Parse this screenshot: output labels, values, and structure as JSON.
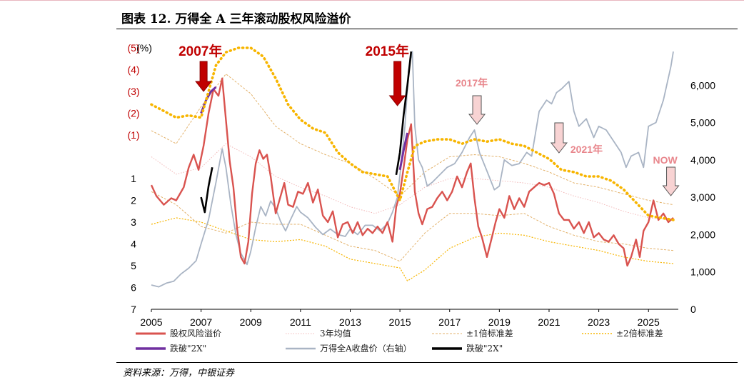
{
  "header": {
    "title": "图表 12. 万得全 A 三年滚动股权风险溢价"
  },
  "footer": {
    "source": "资料来源：万得，中银证券"
  },
  "colors": {
    "erp": "#d9534f",
    "erp_2x": "#7030a0",
    "index": "#a9b4c4",
    "index_2x": "#000000",
    "mean": "#f2b8b8",
    "std1": "#e3b26b",
    "std2": "#f7b500",
    "arrow_dark": "#c00000",
    "arrow_light": "#f8d3d3",
    "annotation_light": "#e8868c"
  },
  "chart_data": {
    "type": "line",
    "x_ticks": [
      "2005",
      "2007",
      "2009",
      "2011",
      "2013",
      "2015",
      "2017",
      "2019",
      "2021",
      "2023",
      "2025"
    ],
    "x_range": [
      2005.0,
      2026.2
    ],
    "y_left_ticks": [
      "(5)",
      "(4)",
      "(3)",
      "(2)",
      "(1)",
      "1",
      "2",
      "3",
      "4",
      "5",
      "6",
      "7"
    ],
    "y_left_unit": "(%)",
    "y_left_range": [
      -5,
      7
    ],
    "y_left_inverted": true,
    "y_right_ticks": [
      "0",
      "1,000",
      "2,000",
      "3,000",
      "4,000",
      "5,000",
      "6,000"
    ],
    "y_right_range": [
      0,
      7000
    ],
    "legend_position": "bottom",
    "legend": [
      {
        "key": "erp",
        "label": "股权风险溢价",
        "style": "solid"
      },
      {
        "key": "mean",
        "label": "3年均值",
        "style": "dotted"
      },
      {
        "key": "std1",
        "label": "±1倍标准差",
        "style": "dashed"
      },
      {
        "key": "std2",
        "label": "±2倍标准差",
        "style": "dotted"
      },
      {
        "key": "erp_2x",
        "label": "跌破\"2X\"",
        "style": "solid"
      },
      {
        "key": "index",
        "label": "万得全A收盘价（右轴）",
        "style": "solid"
      },
      {
        "key": "index_2x",
        "label": "跌破\"2X\"",
        "style": "solid"
      }
    ],
    "annotations": [
      {
        "text": "2007年",
        "x": 2007.1,
        "style": "big"
      },
      {
        "text": "2015年",
        "x": 2014.9,
        "style": "big"
      },
      {
        "text": "2017年",
        "x": 2018.1,
        "style": "small"
      },
      {
        "text": "2021年",
        "x": 2021.4,
        "style": "small"
      },
      {
        "text": "NOW",
        "x": 2025.9,
        "style": "small"
      }
    ],
    "series": [
      {
        "key": "erp",
        "name": "股权风险溢价",
        "axis": "left",
        "x": [
          2005.0,
          2005.2,
          2005.5,
          2005.8,
          2006.0,
          2006.3,
          2006.5,
          2006.7,
          2006.9,
          2007.1,
          2007.3,
          2007.5,
          2007.7,
          2007.85,
          2008.0,
          2008.15,
          2008.3,
          2008.45,
          2008.6,
          2008.75,
          2008.9,
          2009.05,
          2009.2,
          2009.35,
          2009.5,
          2009.65,
          2009.8,
          2010.0,
          2010.2,
          2010.35,
          2010.5,
          2010.7,
          2010.9,
          2011.1,
          2011.3,
          2011.5,
          2011.7,
          2011.9,
          2012.1,
          2012.3,
          2012.5,
          2012.7,
          2012.9,
          2013.1,
          2013.3,
          2013.5,
          2013.7,
          2013.9,
          2014.1,
          2014.3,
          2014.5,
          2014.7,
          2014.85,
          2015.0,
          2015.15,
          2015.3,
          2015.45,
          2015.6,
          2015.75,
          2015.9,
          2016.1,
          2016.3,
          2016.5,
          2016.7,
          2016.9,
          2017.1,
          2017.3,
          2017.5,
          2017.7,
          2017.85,
          2018.0,
          2018.15,
          2018.3,
          2018.5,
          2018.7,
          2018.85,
          2019.0,
          2019.2,
          2019.4,
          2019.6,
          2019.8,
          2020.0,
          2020.2,
          2020.4,
          2020.6,
          2020.8,
          2021.0,
          2021.2,
          2021.4,
          2021.6,
          2021.8,
          2022.0,
          2022.2,
          2022.4,
          2022.6,
          2022.8,
          2023.0,
          2023.2,
          2023.4,
          2023.6,
          2023.8,
          2024.0,
          2024.15,
          2024.3,
          2024.5,
          2024.65,
          2024.8,
          2025.0,
          2025.2,
          2025.4,
          2025.6,
          2025.8,
          2026.0
        ],
        "values": [
          1.3,
          1.8,
          2.2,
          1.9,
          2.0,
          1.4,
          0.5,
          -0.1,
          0.6,
          -0.5,
          -2.0,
          -3.1,
          -2.8,
          -3.6,
          -1.7,
          0.2,
          1.4,
          3.3,
          4.6,
          4.9,
          3.9,
          1.7,
          0.3,
          -0.3,
          0.1,
          -0.1,
          0.9,
          2.6,
          1.8,
          1.2,
          2.2,
          2.3,
          1.6,
          1.7,
          1.2,
          2.1,
          1.5,
          2.7,
          3.0,
          2.5,
          3.7,
          3.1,
          3.0,
          3.5,
          3.0,
          3.6,
          3.3,
          3.5,
          3.2,
          3.5,
          3.0,
          3.9,
          2.3,
          1.7,
          0.5,
          -0.8,
          -1.5,
          1.6,
          2.6,
          3.1,
          2.4,
          2.3,
          1.9,
          1.6,
          2.0,
          1.6,
          0.9,
          1.4,
          0.7,
          0.3,
          1.9,
          3.2,
          3.7,
          4.6,
          3.7,
          3.0,
          2.4,
          2.8,
          1.8,
          2.4,
          1.9,
          2.3,
          1.6,
          1.4,
          1.2,
          1.3,
          1.2,
          1.7,
          2.6,
          2.9,
          2.9,
          3.3,
          3.0,
          3.5,
          3.0,
          3.7,
          3.5,
          3.8,
          3.9,
          3.6,
          4.0,
          4.2,
          5.0,
          4.6,
          3.8,
          4.6,
          3.4,
          3.0,
          2.0,
          2.9,
          2.6,
          3.0,
          2.8
        ]
      },
      {
        "key": "erp_2x",
        "name": "跌破\"2X\"",
        "axis": "left",
        "x": [
          2007.0,
          2007.2,
          2007.4,
          2007.6
        ],
        "values": [
          -2.0,
          -2.6,
          -3.0,
          -3.2
        ]
      },
      {
        "key": "erp_2x_2015",
        "name": "跌破\"2X\"",
        "axis": "left",
        "x": [
          2015.0,
          2015.15,
          2015.3
        ],
        "values": [
          0.6,
          -0.3,
          -1.1
        ]
      },
      {
        "key": "index",
        "name": "万得全A收盘价（右轴）",
        "axis": "right",
        "x": [
          2005.0,
          2005.3,
          2005.6,
          2005.9,
          2006.2,
          2006.5,
          2006.8,
          2007.0,
          2007.3,
          2007.6,
          2007.85,
          2008.0,
          2008.2,
          2008.4,
          2008.6,
          2008.85,
          2009.0,
          2009.2,
          2009.4,
          2009.6,
          2009.8,
          2010.0,
          2010.2,
          2010.4,
          2010.6,
          2010.85,
          2011.0,
          2011.3,
          2011.6,
          2011.9,
          2012.2,
          2012.5,
          2012.8,
          2013.0,
          2013.3,
          2013.6,
          2013.9,
          2014.2,
          2014.5,
          2014.7,
          2014.9,
          2015.05,
          2015.2,
          2015.35,
          2015.5,
          2015.6,
          2015.75,
          2015.9,
          2016.1,
          2016.3,
          2016.6,
          2016.9,
          2017.2,
          2017.5,
          2017.8,
          2018.0,
          2018.2,
          2018.5,
          2018.8,
          2019.0,
          2019.2,
          2019.5,
          2019.8,
          2020.1,
          2020.3,
          2020.6,
          2020.9,
          2021.1,
          2021.3,
          2021.5,
          2021.8,
          2022.0,
          2022.2,
          2022.5,
          2022.8,
          2023.0,
          2023.3,
          2023.6,
          2023.9,
          2024.1,
          2024.3,
          2024.6,
          2024.8,
          2025.0,
          2025.3,
          2025.6,
          2025.9,
          2026.0
        ],
        "values": [
          650,
          600,
          700,
          750,
          950,
          1100,
          1300,
          1750,
          2400,
          3400,
          4300,
          3800,
          2800,
          2000,
          1500,
          1200,
          1550,
          2200,
          2750,
          2500,
          2900,
          2700,
          2350,
          2100,
          2400,
          2750,
          2600,
          2450,
          2200,
          2000,
          2150,
          2000,
          1950,
          2150,
          2000,
          2250,
          2250,
          2100,
          2300,
          2600,
          3000,
          3900,
          4900,
          6400,
          6900,
          4900,
          4000,
          3800,
          3300,
          3400,
          3600,
          3800,
          3900,
          4200,
          4600,
          4800,
          4200,
          3700,
          3200,
          3300,
          4000,
          3850,
          3900,
          4200,
          4100,
          5300,
          5600,
          5500,
          5800,
          5900,
          6100,
          5300,
          4900,
          5100,
          4600,
          4900,
          4800,
          4500,
          4200,
          3800,
          4100,
          4200,
          3800,
          4900,
          5000,
          5600,
          6500,
          6900
        ]
      },
      {
        "key": "index_2x",
        "name": "跌破\"2X\"",
        "axis": "right",
        "x": [
          2007.0,
          2007.15,
          2007.3,
          2007.45
        ],
        "values": [
          3000,
          2600,
          3300,
          3800
        ]
      },
      {
        "key": "index_2x_2015",
        "name": "跌破\"2X\"",
        "axis": "right",
        "x": [
          2014.85,
          2015.0,
          2015.15,
          2015.3,
          2015.45
        ],
        "values": [
          3600,
          4200,
          5200,
          6000,
          6900
        ]
      },
      {
        "key": "mean",
        "name": "3年均值",
        "axis": "left",
        "x": [
          2005.0,
          2006.0,
          2007.0,
          2008.0,
          2009.0,
          2010.0,
          2011.0,
          2012.0,
          2013.0,
          2014.0,
          2015.0,
          2016.0,
          2017.0,
          2018.0,
          2019.0,
          2020.0,
          2021.0,
          2022.0,
          2023.0,
          2024.0,
          2025.0,
          2026.0
        ],
        "values": [
          0.0,
          0.8,
          0.5,
          -0.6,
          0.0,
          0.9,
          1.4,
          1.8,
          2.3,
          2.6,
          2.2,
          1.4,
          1.0,
          1.0,
          1.1,
          1.2,
          1.4,
          1.8,
          2.1,
          2.5,
          2.8,
          2.9
        ]
      },
      {
        "key": "std1_upper",
        "name": "±1倍标准差",
        "axis": "left",
        "x": [
          2005.0,
          2006.0,
          2007.0,
          2008.0,
          2009.0,
          2010.0,
          2011.0,
          2012.0,
          2013.0,
          2014.0,
          2015.0,
          2016.0,
          2017.0,
          2018.0,
          2019.0,
          2020.0,
          2021.0,
          2022.0,
          2023.0,
          2024.0,
          2025.0,
          2026.0
        ],
        "values": [
          -1.2,
          -0.6,
          -2.3,
          -3.8,
          -2.9,
          -1.4,
          -0.6,
          -0.1,
          0.3,
          1.0,
          1.8,
          0.7,
          0.0,
          -0.1,
          0.0,
          0.3,
          0.7,
          1.2,
          1.4,
          1.7,
          2.0,
          2.2
        ]
      },
      {
        "key": "std1_lower",
        "name": "±1倍标准差",
        "axis": "left",
        "x": [
          2005.0,
          2006.0,
          2007.0,
          2008.0,
          2009.0,
          2010.0,
          2011.0,
          2012.0,
          2013.0,
          2014.0,
          2015.0,
          2016.0,
          2017.0,
          2018.0,
          2019.0,
          2020.0,
          2021.0,
          2022.0,
          2023.0,
          2024.0,
          2025.0,
          2026.0
        ],
        "values": [
          1.6,
          2.2,
          3.2,
          3.5,
          3.0,
          3.1,
          3.1,
          3.6,
          4.1,
          4.3,
          4.8,
          3.5,
          2.6,
          2.6,
          2.7,
          2.6,
          3.2,
          3.6,
          3.9,
          4.0,
          4.2,
          4.3
        ]
      },
      {
        "key": "std2_upper",
        "name": "±2倍标准差",
        "axis": "left",
        "x": [
          2005.0,
          2005.5,
          2006.0,
          2006.5,
          2007.0,
          2007.3,
          2007.6,
          2008.0,
          2008.5,
          2009.0,
          2009.5,
          2010.0,
          2010.5,
          2011.0,
          2011.5,
          2012.0,
          2012.5,
          2013.0,
          2013.5,
          2014.0,
          2014.5,
          2015.0,
          2015.3,
          2015.6,
          2016.0,
          2016.5,
          2017.0,
          2017.5,
          2018.0,
          2018.5,
          2019.0,
          2019.5,
          2020.0,
          2020.5,
          2021.0,
          2021.5,
          2022.0,
          2022.5,
          2023.0,
          2023.5,
          2024.0,
          2024.5,
          2025.0,
          2025.5,
          2026.0
        ],
        "values": [
          -2.4,
          -2.1,
          -1.8,
          -1.9,
          -1.8,
          -3.0,
          -4.2,
          -4.8,
          -5.0,
          -5.0,
          -4.6,
          -3.6,
          -2.4,
          -1.7,
          -1.3,
          -1.1,
          -0.2,
          0.3,
          0.7,
          0.8,
          0.9,
          2.0,
          0.7,
          -0.5,
          -0.7,
          -0.8,
          -0.8,
          -0.6,
          -0.8,
          -0.7,
          -0.8,
          -0.6,
          -0.5,
          -0.2,
          0.1,
          0.6,
          0.7,
          0.9,
          0.9,
          1.1,
          1.5,
          2.1,
          2.7,
          2.8,
          2.9
        ]
      },
      {
        "key": "std2_lower",
        "name": "±2倍标准差",
        "axis": "left",
        "x": [
          2005.0,
          2006.0,
          2007.0,
          2008.0,
          2009.0,
          2010.0,
          2011.0,
          2012.0,
          2013.0,
          2014.0,
          2015.0,
          2015.3,
          2016.0,
          2017.0,
          2018.0,
          2019.0,
          2020.0,
          2021.0,
          2022.0,
          2023.0,
          2024.0,
          2025.0,
          2026.0
        ],
        "values": [
          3.1,
          2.8,
          3.0,
          3.4,
          3.8,
          3.9,
          3.8,
          4.1,
          4.7,
          4.9,
          5.1,
          5.7,
          5.2,
          4.2,
          3.7,
          3.5,
          3.6,
          3.9,
          4.1,
          4.3,
          4.6,
          4.8,
          4.9
        ]
      }
    ]
  }
}
